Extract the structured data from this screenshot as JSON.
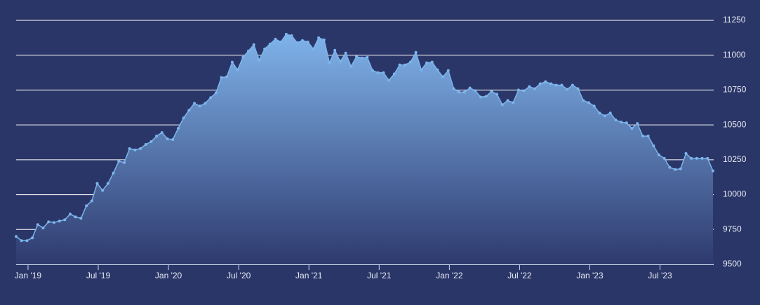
{
  "chart_data": {
    "type": "area",
    "values": [
      9700,
      9670,
      9670,
      9690,
      9785,
      9760,
      9805,
      9800,
      9810,
      9820,
      9860,
      9840,
      9830,
      9920,
      9955,
      10080,
      10030,
      10080,
      10155,
      10240,
      10230,
      10330,
      10320,
      10330,
      10360,
      10380,
      10420,
      10445,
      10400,
      10395,
      10475,
      10550,
      10605,
      10655,
      10635,
      10655,
      10695,
      10730,
      10840,
      10845,
      10950,
      10895,
      10985,
      11030,
      11075,
      10965,
      11045,
      11080,
      11115,
      11095,
      11150,
      11140,
      11090,
      11105,
      11095,
      11045,
      11125,
      11110,
      10945,
      11035,
      10955,
      11015,
      10920,
      10990,
      10980,
      10985,
      10890,
      10875,
      10875,
      10820,
      10865,
      10930,
      10930,
      10950,
      11020,
      10895,
      10945,
      10950,
      10895,
      10845,
      10890,
      10760,
      10735,
      10735,
      10765,
      10745,
      10700,
      10705,
      10740,
      10720,
      10645,
      10675,
      10660,
      10750,
      10745,
      10775,
      10760,
      10795,
      10810,
      10795,
      10785,
      10785,
      10755,
      10785,
      10760,
      10675,
      10660,
      10635,
      10585,
      10565,
      10585,
      10535,
      10520,
      10515,
      10475,
      10510,
      10420,
      10420,
      10350,
      10285,
      10260,
      10195,
      10180,
      10185,
      10295,
      10260,
      10260,
      10260,
      10260,
      10170
    ],
    "color": "#7cb5ec",
    "xlim": [
      0,
      129
    ],
    "xticks": [
      {
        "value": 2.2,
        "label": "Jan '19"
      },
      {
        "value": 15.2,
        "label": "Jul '19"
      },
      {
        "value": 28.2,
        "label": "Jan '20"
      },
      {
        "value": 41.2,
        "label": "Jul '20"
      },
      {
        "value": 54.2,
        "label": "Jan '21"
      },
      {
        "value": 67.2,
        "label": "Jul '21"
      },
      {
        "value": 80.2,
        "label": "Jan '22"
      },
      {
        "value": 93.2,
        "label": "Jul '22"
      },
      {
        "value": 106.2,
        "label": "Jan '23"
      },
      {
        "value": 119.2,
        "label": "Jul '23"
      }
    ],
    "ylim": [
      9500,
      11250
    ],
    "yticks": [
      9500,
      9750,
      10000,
      10250,
      10500,
      10750,
      11000,
      11250
    ],
    "grid": true
  }
}
